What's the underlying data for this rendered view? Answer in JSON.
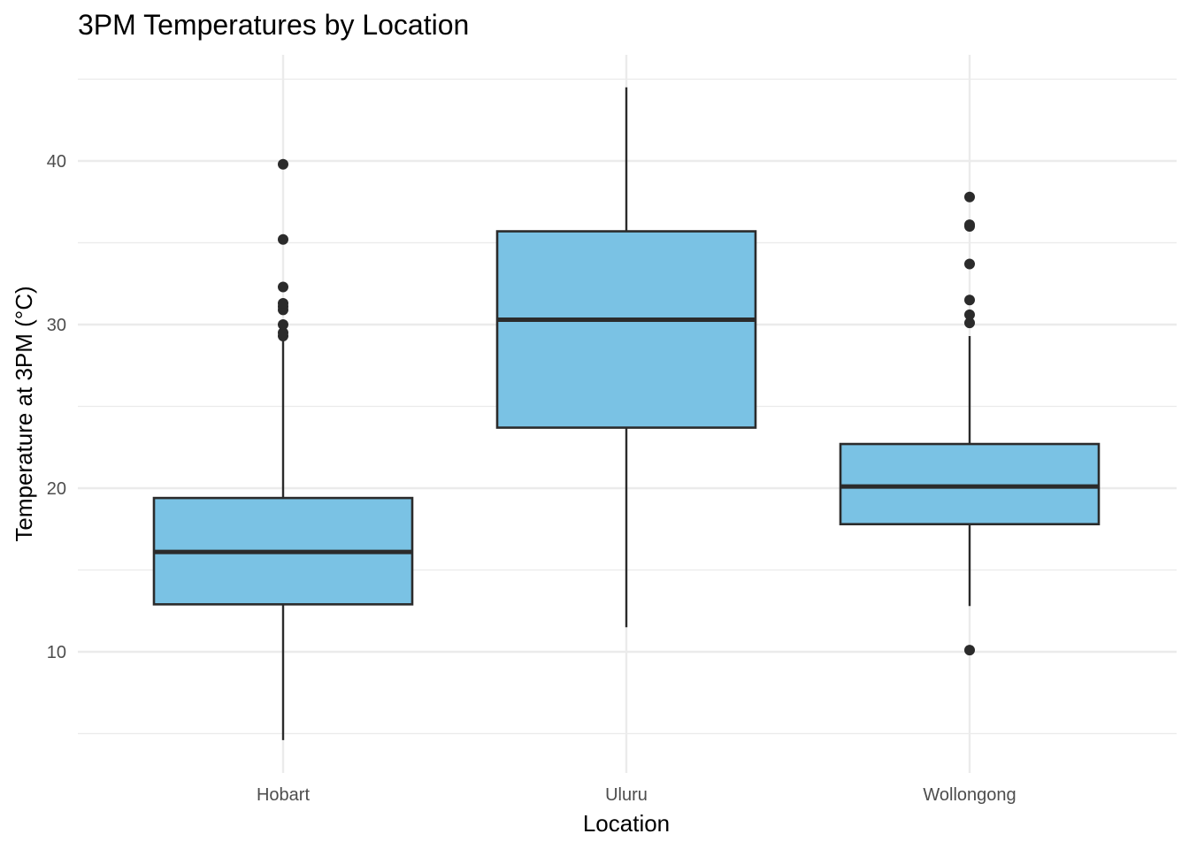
{
  "chart_data": {
    "type": "boxplot",
    "title": "3PM Temperatures by Location",
    "xlabel": "Location",
    "ylabel": "Temperature at 3PM (°C)",
    "ylim": [
      3.5,
      46
    ],
    "y_ticks": [
      10,
      20,
      30,
      40
    ],
    "y_minor_ticks": [
      5,
      15,
      25,
      35,
      45
    ],
    "grid": true,
    "legend": "none",
    "colors": {
      "fill": "#7AC2E4",
      "stroke": "#2B2B2B",
      "grid": "#EBEBEB"
    },
    "categories": [
      "Hobart",
      "Uluru",
      "Wollongong"
    ],
    "boxes": [
      {
        "category": "Hobart",
        "whisker_low": 4.6,
        "q1": 12.9,
        "median": 16.1,
        "q3": 19.4,
        "whisker_high": 29.1,
        "outliers": [
          29.3,
          29.5,
          30.0,
          30.9,
          31.1,
          31.3,
          32.3,
          35.2,
          39.8
        ]
      },
      {
        "category": "Uluru",
        "whisker_low": 11.5,
        "q1": 23.7,
        "median": 30.3,
        "q3": 35.7,
        "whisker_high": 44.5,
        "outliers": []
      },
      {
        "category": "Wollongong",
        "whisker_low": 12.8,
        "q1": 17.8,
        "median": 20.1,
        "q3": 22.7,
        "whisker_high": 29.3,
        "outliers": [
          10.1,
          30.1,
          30.6,
          31.5,
          33.7,
          36.0,
          36.1,
          37.8
        ]
      }
    ]
  }
}
